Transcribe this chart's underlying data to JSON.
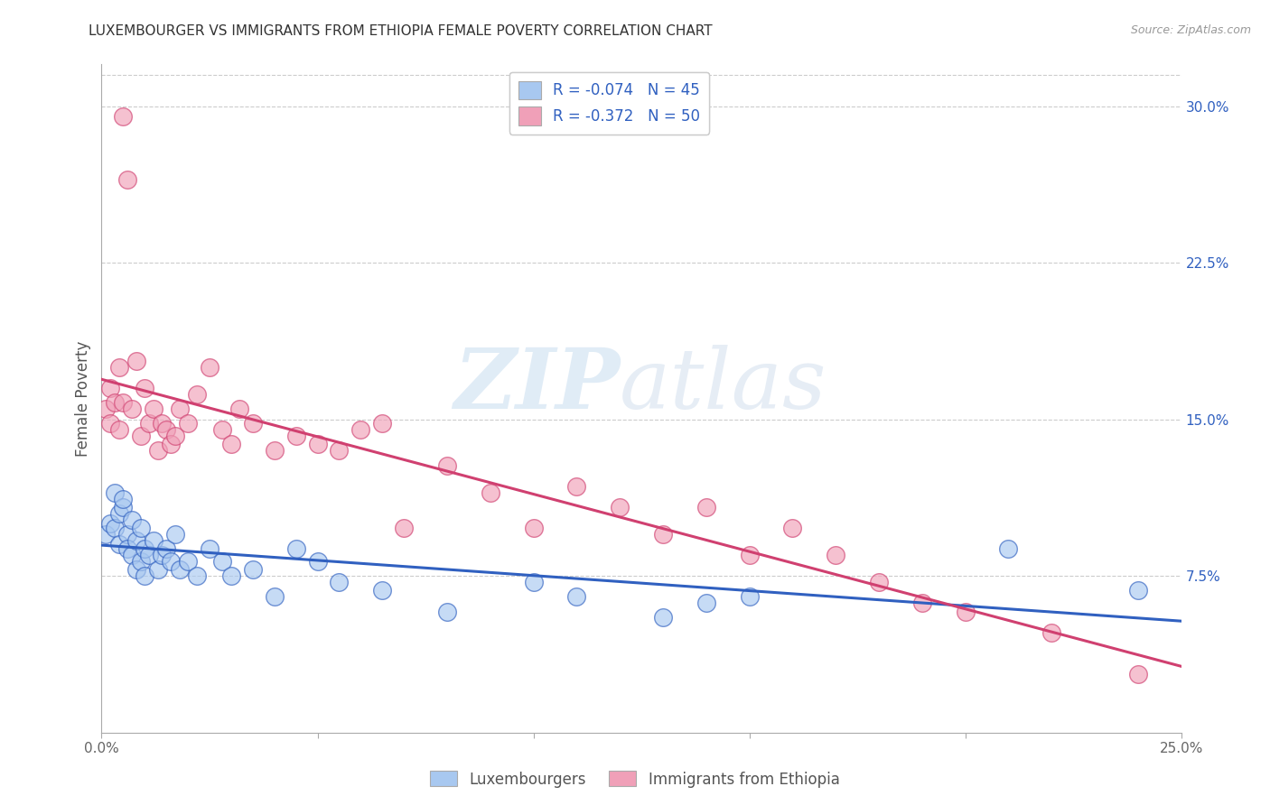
{
  "title": "LUXEMBOURGER VS IMMIGRANTS FROM ETHIOPIA FEMALE POVERTY CORRELATION CHART",
  "source": "Source: ZipAtlas.com",
  "ylabel": "Female Poverty",
  "x_min": 0.0,
  "x_max": 0.25,
  "y_min": 0.0,
  "y_max": 0.32,
  "x_ticks": [
    0.0,
    0.05,
    0.1,
    0.15,
    0.2,
    0.25
  ],
  "x_tick_labels": [
    "0.0%",
    "",
    "",
    "",
    "",
    "25.0%"
  ],
  "y_ticks_right": [
    0.075,
    0.15,
    0.225,
    0.3
  ],
  "y_tick_labels_right": [
    "7.5%",
    "15.0%",
    "22.5%",
    "30.0%"
  ],
  "blue_color": "#a8c8f0",
  "pink_color": "#f0a0b8",
  "blue_line_color": "#3060c0",
  "pink_line_color": "#d04070",
  "legend_label_blue": "R = -0.074   N = 45",
  "legend_label_pink": "R = -0.372   N = 50",
  "legend_label_lux": "Luxembourgers",
  "legend_label_eth": "Immigrants from Ethiopia",
  "blue_x": [
    0.001,
    0.002,
    0.003,
    0.003,
    0.004,
    0.004,
    0.005,
    0.005,
    0.006,
    0.006,
    0.007,
    0.007,
    0.008,
    0.008,
    0.009,
    0.009,
    0.01,
    0.01,
    0.011,
    0.012,
    0.013,
    0.014,
    0.015,
    0.016,
    0.017,
    0.018,
    0.02,
    0.022,
    0.025,
    0.028,
    0.03,
    0.035,
    0.04,
    0.045,
    0.05,
    0.055,
    0.065,
    0.08,
    0.1,
    0.11,
    0.13,
    0.14,
    0.15,
    0.21,
    0.24
  ],
  "blue_y": [
    0.095,
    0.1,
    0.115,
    0.098,
    0.105,
    0.09,
    0.108,
    0.112,
    0.095,
    0.088,
    0.102,
    0.085,
    0.092,
    0.078,
    0.098,
    0.082,
    0.088,
    0.075,
    0.085,
    0.092,
    0.078,
    0.085,
    0.088,
    0.082,
    0.095,
    0.078,
    0.082,
    0.075,
    0.088,
    0.082,
    0.075,
    0.078,
    0.065,
    0.088,
    0.082,
    0.072,
    0.068,
    0.058,
    0.072,
    0.065,
    0.055,
    0.062,
    0.065,
    0.088,
    0.068
  ],
  "pink_x": [
    0.001,
    0.002,
    0.002,
    0.003,
    0.004,
    0.004,
    0.005,
    0.005,
    0.006,
    0.007,
    0.008,
    0.009,
    0.01,
    0.011,
    0.012,
    0.013,
    0.014,
    0.015,
    0.016,
    0.017,
    0.018,
    0.02,
    0.022,
    0.025,
    0.028,
    0.03,
    0.032,
    0.035,
    0.04,
    0.045,
    0.05,
    0.055,
    0.06,
    0.065,
    0.07,
    0.08,
    0.09,
    0.1,
    0.11,
    0.12,
    0.13,
    0.14,
    0.15,
    0.16,
    0.17,
    0.18,
    0.19,
    0.2,
    0.22,
    0.24
  ],
  "pink_y": [
    0.155,
    0.148,
    0.165,
    0.158,
    0.145,
    0.175,
    0.295,
    0.158,
    0.265,
    0.155,
    0.178,
    0.142,
    0.165,
    0.148,
    0.155,
    0.135,
    0.148,
    0.145,
    0.138,
    0.142,
    0.155,
    0.148,
    0.162,
    0.175,
    0.145,
    0.138,
    0.155,
    0.148,
    0.135,
    0.142,
    0.138,
    0.135,
    0.145,
    0.148,
    0.098,
    0.128,
    0.115,
    0.098,
    0.118,
    0.108,
    0.095,
    0.108,
    0.085,
    0.098,
    0.085,
    0.072,
    0.062,
    0.058,
    0.048,
    0.028
  ]
}
